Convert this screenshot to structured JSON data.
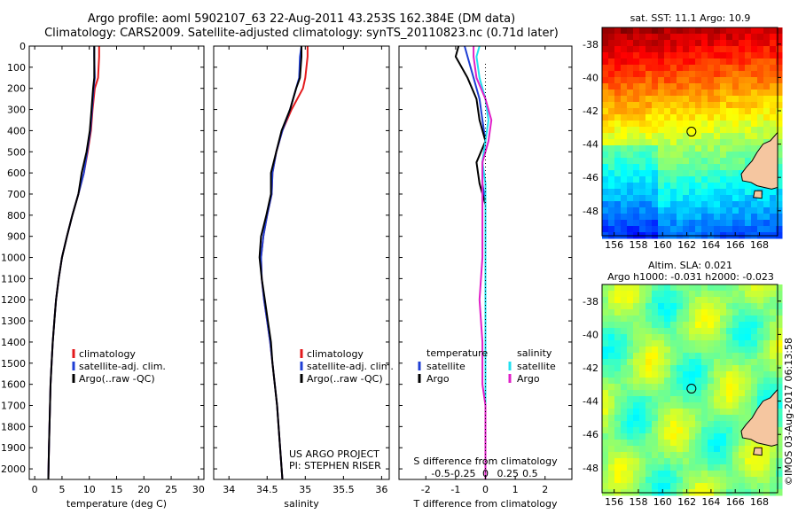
{
  "header": {
    "line1": "Argo profile: aoml 5902107_63 22-Aug-2011 43.253S 162.384E (DM data)",
    "line2": "Climatology: CARS2009. Satellite-adjusted climatology: synTS_20110823.nc (0.71d later)"
  },
  "colors": {
    "climatology": "#e31a1c",
    "satellite": "#1f3fd4",
    "argo": "#000000",
    "sal_satellite": "#22e0f0",
    "sal_argo": "#e020c8",
    "land": "#f5c6a0"
  },
  "chart_data": [
    {
      "type": "line",
      "name": "temperature-profile",
      "xlabel": "temperature (deg C)",
      "ylim": [
        2050,
        0
      ],
      "xlim": [
        -1,
        31
      ],
      "xticks": [
        0,
        5,
        10,
        15,
        20,
        25,
        30
      ],
      "yticks": [
        0,
        100,
        200,
        300,
        400,
        500,
        600,
        700,
        800,
        900,
        1000,
        1100,
        1200,
        1300,
        1400,
        1500,
        1600,
        1700,
        1800,
        1900,
        2000
      ],
      "legend": [
        "climatology",
        "satellite-adj. clim.",
        "Argo(..raw -QC)"
      ],
      "series": [
        {
          "name": "climatology",
          "color_key": "climatology",
          "x": [
            11.8,
            11.8,
            11.6,
            11.0,
            10.6,
            10.3,
            9.7,
            9.0,
            8.0,
            6.9,
            5.9,
            5.0,
            4.4,
            3.9,
            3.6,
            3.3,
            3.1,
            2.9,
            2.8,
            2.7,
            2.6,
            2.5
          ],
          "y": [
            0,
            50,
            150,
            200,
            300,
            400,
            500,
            600,
            700,
            800,
            900,
            1000,
            1100,
            1200,
            1300,
            1400,
            1500,
            1600,
            1700,
            1800,
            1900,
            2050
          ]
        },
        {
          "name": "satellite-adj. clim.",
          "color_key": "satellite",
          "x": [
            10.9,
            10.9,
            11.0,
            10.8,
            10.5,
            10.2,
            9.6,
            9.0,
            8.0,
            6.9,
            5.9,
            5.0,
            4.4,
            3.9,
            3.6,
            3.3,
            3.1,
            2.9,
            2.8,
            2.7,
            2.6,
            2.5
          ],
          "y": [
            0,
            50,
            150,
            200,
            300,
            400,
            500,
            600,
            700,
            800,
            900,
            1000,
            1100,
            1200,
            1300,
            1400,
            1500,
            1600,
            1700,
            1800,
            1900,
            2050
          ]
        },
        {
          "name": "Argo(..raw -QC)",
          "color_key": "argo",
          "x": [
            10.9,
            10.9,
            10.9,
            10.7,
            10.4,
            10.1,
            9.5,
            8.6,
            8.0,
            6.9,
            5.9,
            5.0,
            4.4,
            3.9,
            3.6,
            3.3,
            3.1,
            2.9,
            2.8,
            2.7,
            2.6,
            2.5
          ],
          "y": [
            0,
            50,
            150,
            200,
            300,
            400,
            500,
            600,
            700,
            800,
            900,
            1000,
            1100,
            1200,
            1300,
            1400,
            1500,
            1600,
            1700,
            1800,
            1900,
            2050
          ]
        }
      ]
    },
    {
      "type": "line",
      "name": "salinity-profile",
      "xlabel": "salinity",
      "ylim": [
        2050,
        0
      ],
      "xlim": [
        33.8,
        36.1
      ],
      "xticks": [
        34,
        34.5,
        35,
        35.5,
        36
      ],
      "xticklabels": [
        "34",
        "34.5",
        "35",
        "35.5",
        "36"
      ],
      "legend": [
        "climatology",
        "satellite-adj. clim.",
        "Argo(..raw -QC)"
      ],
      "annotation": [
        "US ARGO PROJECT",
        "PI: STEPHEN RISER"
      ],
      "series": [
        {
          "name": "climatology",
          "color_key": "climatology",
          "x": [
            35.03,
            35.03,
            35.0,
            34.97,
            34.82,
            34.7,
            34.62,
            34.57,
            34.56,
            34.5,
            34.45,
            34.42,
            34.43,
            34.46,
            34.5,
            34.54,
            34.57,
            34.6,
            34.63,
            34.65,
            34.67,
            34.7
          ],
          "y": [
            0,
            50,
            150,
            200,
            300,
            400,
            500,
            600,
            700,
            800,
            900,
            1000,
            1100,
            1200,
            1300,
            1400,
            1500,
            1600,
            1700,
            1800,
            1900,
            2050
          ]
        },
        {
          "name": "satellite-adj. clim.",
          "color_key": "satellite",
          "x": [
            34.95,
            34.93,
            34.92,
            34.88,
            34.8,
            34.7,
            34.62,
            34.57,
            34.56,
            34.5,
            34.45,
            34.42,
            34.43,
            34.46,
            34.5,
            34.54,
            34.57,
            34.6,
            34.63,
            34.65,
            34.67,
            34.7
          ],
          "y": [
            0,
            50,
            150,
            200,
            300,
            400,
            500,
            600,
            700,
            800,
            900,
            1000,
            1100,
            1200,
            1300,
            1400,
            1500,
            1600,
            1700,
            1800,
            1900,
            2050
          ]
        },
        {
          "name": "Argo(..raw -QC)",
          "color_key": "argo",
          "x": [
            34.95,
            34.95,
            34.93,
            34.88,
            34.8,
            34.69,
            34.62,
            34.55,
            34.55,
            34.49,
            34.42,
            34.4,
            34.43,
            34.47,
            34.51,
            34.55,
            34.57,
            34.6,
            34.63,
            34.65,
            34.67,
            34.7
          ],
          "y": [
            0,
            50,
            150,
            200,
            300,
            400,
            500,
            600,
            700,
            800,
            900,
            1000,
            1100,
            1200,
            1300,
            1400,
            1500,
            1600,
            1700,
            1800,
            1900,
            2050
          ]
        }
      ]
    },
    {
      "type": "line",
      "name": "difference-profile",
      "xlabel": "T difference from climatology",
      "xlabel_top": "S difference from climatology",
      "ylim": [
        2050,
        0
      ],
      "xlim": [
        -2.9,
        2.9
      ],
      "xticks": [
        -2,
        -1,
        0,
        1,
        2
      ],
      "xticks_top": [
        -0.5,
        -0.25,
        0,
        0.25,
        0.5
      ],
      "xticklabels_top": [
        "-0.5",
        "-0.25",
        "0",
        "0.25",
        "0.5"
      ],
      "legend": {
        "temperature_title": "temperature",
        "salinity_title": "salinity",
        "temperature": [
          "satellite",
          "Argo"
        ],
        "salinity": [
          "satellite",
          "Argo"
        ]
      },
      "series": [
        {
          "name": "temperature satellite",
          "color_key": "satellite",
          "x": [
            -0.7,
            -0.6,
            -0.4,
            -0.2,
            -0.1,
            0.0,
            -0.1,
            -0.1,
            0.0,
            0.0,
            0.0,
            0.0,
            0.0,
            0.0,
            0.0,
            0.0,
            0.0,
            0.0,
            0.0
          ],
          "y": [
            0,
            50,
            150,
            250,
            350,
            450,
            550,
            650,
            750,
            850,
            1000,
            1200,
            1400,
            1500,
            1600,
            1700,
            1800,
            1900,
            2050
          ]
        },
        {
          "name": "temperature Argo",
          "color_key": "argo",
          "x": [
            -0.9,
            -1.0,
            -0.6,
            -0.3,
            -0.2,
            0.0,
            -0.3,
            -0.2,
            0.0,
            0.0,
            0.0,
            0.0,
            0.0,
            0.0,
            0.0,
            0.0,
            0.0,
            0.0,
            0.0
          ],
          "y": [
            0,
            50,
            150,
            250,
            350,
            450,
            550,
            650,
            750,
            850,
            1000,
            1200,
            1400,
            1500,
            1600,
            1700,
            1800,
            1900,
            2050
          ]
        },
        {
          "name": "salinity satellite",
          "color_key": "sal_satellite",
          "x": [
            -0.2,
            -0.3,
            -0.2,
            0.0,
            0.1,
            0.0,
            -0.1,
            0.0,
            0.0,
            0.0,
            0.0,
            0.0,
            0.0,
            0.0,
            0.0,
            0.0,
            0.0,
            0.0,
            0.0
          ],
          "y": [
            0,
            50,
            150,
            250,
            350,
            450,
            550,
            650,
            750,
            850,
            1000,
            1200,
            1400,
            1500,
            1600,
            1700,
            1800,
            1900,
            2050
          ]
        },
        {
          "name": "salinity Argo",
          "color_key": "sal_argo",
          "x": [
            -0.4,
            -0.4,
            -0.3,
            0.0,
            0.2,
            0.1,
            -0.1,
            -0.1,
            -0.1,
            -0.1,
            -0.1,
            -0.2,
            -0.1,
            -0.1,
            -0.1,
            0.0,
            0.0,
            0.0,
            0.0
          ],
          "y": [
            0,
            50,
            150,
            250,
            350,
            450,
            550,
            650,
            750,
            850,
            1000,
            1200,
            1400,
            1500,
            1600,
            1700,
            1800,
            1900,
            2050
          ]
        }
      ]
    },
    {
      "type": "heatmap",
      "name": "sst-map",
      "title": "sat. SST: 11.1  Argo: 10.9",
      "xlim": [
        155,
        169.5
      ],
      "ylim": [
        -49.5,
        -37
      ],
      "xticks": [
        156,
        158,
        160,
        162,
        164,
        166,
        168
      ],
      "yticks": [
        -38,
        -40,
        -42,
        -44,
        -46,
        -48
      ],
      "marker": {
        "lon": 162.384,
        "lat": -43.253
      }
    },
    {
      "type": "heatmap",
      "name": "sla-map",
      "title": "Altim. SLA: 0.021",
      "subtitle": "Argo h1000: -0.031 h2000: -0.023",
      "xlim": [
        155,
        169.5
      ],
      "ylim": [
        -49.5,
        -37
      ],
      "xticks": [
        156,
        158,
        160,
        162,
        164,
        166,
        168
      ],
      "yticks": [
        -38,
        -40,
        -42,
        -44,
        -46,
        -48
      ],
      "marker": {
        "lon": 162.384,
        "lat": -43.253
      }
    }
  ],
  "credit": "©IMOS 03-Aug-2017 06:13:58"
}
